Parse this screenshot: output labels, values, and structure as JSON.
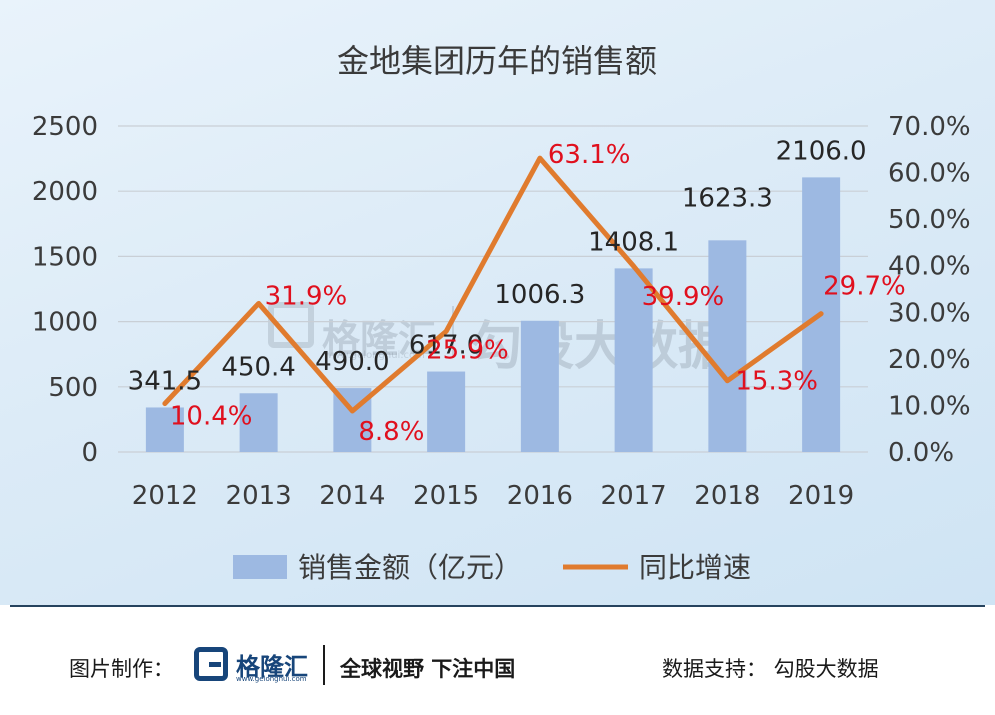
{
  "chart_data": {
    "type": "bar+line",
    "title": "金地集团历年的销售额",
    "categories": [
      "2012",
      "2013",
      "2014",
      "2015",
      "2016",
      "2017",
      "2018",
      "2019"
    ],
    "series": [
      {
        "name": "销售金额（亿元）",
        "type": "bar",
        "axis": "left",
        "color": "#9db9e2",
        "values": [
          341.5,
          450.4,
          490.0,
          617.0,
          1006.3,
          1408.1,
          1623.3,
          2106.0
        ],
        "labels": [
          "341.5",
          "450.4",
          "490.0",
          "617.0",
          "1006.3",
          "1408.1",
          "1623.3",
          "2106.0"
        ]
      },
      {
        "name": "同比增速",
        "type": "line",
        "axis": "right",
        "color": "#e07b2e",
        "values": [
          10.4,
          31.9,
          8.8,
          25.9,
          63.1,
          39.9,
          15.3,
          29.7
        ],
        "labels": [
          "10.4%",
          "31.9%",
          "8.8%",
          "25.9%",
          "63.1%",
          "39.9%",
          "15.3%",
          "29.7%"
        ],
        "label_color": "#e0101e"
      }
    ],
    "y_left": {
      "min": 0,
      "max": 2500,
      "ticks": [
        "0",
        "500",
        "1000",
        "1500",
        "2000",
        "2500"
      ]
    },
    "y_right": {
      "min": 0,
      "max": 70,
      "ticks": [
        "0.0%",
        "10.0%",
        "20.0%",
        "30.0%",
        "40.0%",
        "50.0%",
        "60.0%",
        "70.0%"
      ]
    },
    "grid": true,
    "legend_position": "bottom"
  },
  "watermark": {
    "brand": "格隆汇",
    "url": "www.gelonghui.com",
    "source": "勾股大数据"
  },
  "footer": {
    "credit": "图片制作：",
    "logo_name": "格隆汇",
    "logo_url": "www.gelonghui.com",
    "slogan": "全球视野 下注中国",
    "source": "数据支持：  勾股大数据"
  }
}
